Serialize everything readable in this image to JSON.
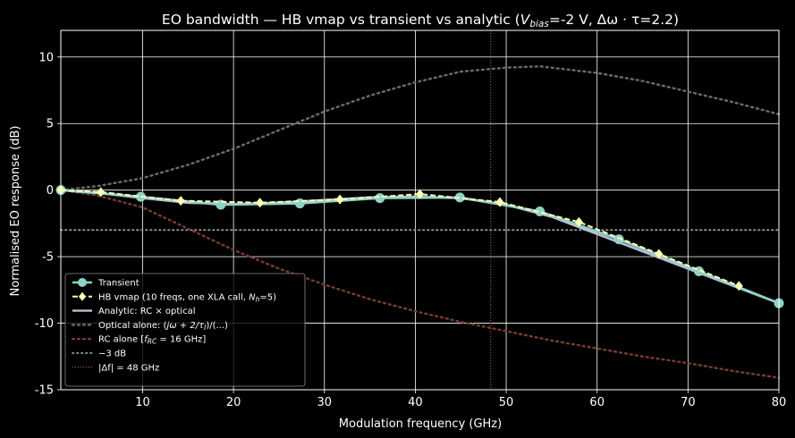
{
  "chart_data": {
    "type": "line",
    "title": "EO bandwidth — HB vmap vs transient vs analytic  (V_bias=-2 V, Δω · τ=2.2)",
    "title_parts": {
      "prefix": "EO bandwidth — HB vmap vs transient vs analytic  (",
      "v": "V",
      "v_sub": "bias",
      "mid": "=-2 V, Δω · τ=2.2)"
    },
    "xlabel": "Modulation frequency (GHz)",
    "ylabel": "Normalised EO response (dB)",
    "xlim": [
      1,
      80
    ],
    "ylim": [
      -15,
      12
    ],
    "xticks": [
      10,
      20,
      30,
      40,
      50,
      60,
      70,
      80
    ],
    "yticks": [
      -15,
      -10,
      -5,
      0,
      5,
      10
    ],
    "grid": true,
    "legend_position": "lower-left",
    "colors": {
      "background": "#000000",
      "grid": "#ffffff",
      "transient": "#8dd3c7",
      "hb": "#ffffb3",
      "analytic": "#bfbbd9",
      "optical": "#6b6b6b",
      "rc": "#7a3b33",
      "minus3db": "#9a9a9a",
      "df": "#c46a34"
    },
    "series": [
      {
        "name": "Transient",
        "legend": "Transient",
        "style": "line-circle",
        "color": "#8dd3c7",
        "x": [
          1,
          9.8,
          18.6,
          27.3,
          36.1,
          44.9,
          53.7,
          62.4,
          71.2,
          80
        ],
        "y": [
          0,
          -0.5,
          -1.1,
          -1.0,
          -0.6,
          -0.55,
          -1.6,
          -3.7,
          -6.1,
          -8.5
        ]
      },
      {
        "name": "HB vmap",
        "legend_prefix": "HB vmap (10 freqs, one XLA call, ",
        "legend_n": "N",
        "legend_sub": "h",
        "legend_suffix": "=5)",
        "style": "dashed-diamond",
        "color": "#ffffb3",
        "x": [
          1,
          5.4,
          14.2,
          22.9,
          31.7,
          40.5,
          49.3,
          58.0,
          66.8,
          75.6
        ],
        "y": [
          0,
          -0.15,
          -0.8,
          -0.95,
          -0.7,
          -0.3,
          -0.9,
          -2.4,
          -4.8,
          -7.2
        ]
      },
      {
        "name": "Analytic",
        "legend": "Analytic: RC × optical",
        "style": "solid",
        "color": "#bfbbd9",
        "x": [
          1,
          5,
          10,
          15,
          20,
          25,
          30,
          35,
          40,
          45,
          50,
          55,
          60,
          65,
          70,
          75,
          80
        ],
        "y": [
          0,
          -0.2,
          -0.6,
          -0.95,
          -1.05,
          -0.95,
          -0.75,
          -0.55,
          -0.5,
          -0.6,
          -1.1,
          -2.0,
          -3.3,
          -4.6,
          -5.9,
          -7.2,
          -8.5
        ]
      },
      {
        "name": "Optical alone",
        "legend_prefix": "Optical alone: (",
        "legend_math": "jω + 2/τ",
        "legend_sub": "I",
        "legend_suffix": ")/(...)",
        "style": "dotted",
        "color": "#6b6b6b",
        "x": [
          1,
          5,
          10,
          15,
          20,
          25,
          30,
          35,
          40,
          45,
          50,
          53.7,
          60,
          65,
          70,
          75,
          80
        ],
        "y": [
          0,
          0.3,
          0.9,
          1.9,
          3.1,
          4.5,
          5.9,
          7.1,
          8.1,
          8.9,
          9.2,
          9.3,
          8.8,
          8.2,
          7.4,
          6.6,
          5.7
        ]
      },
      {
        "name": "RC alone",
        "legend_prefix": "RC alone  [",
        "legend_f": "f",
        "legend_sub": "RC",
        "legend_suffix": " = 16 GHz]",
        "style": "dotted",
        "color": "#7a3b33",
        "x": [
          1,
          5,
          10,
          15,
          20,
          25,
          30,
          35,
          40,
          45,
          50,
          55,
          60,
          65,
          70,
          75,
          80
        ],
        "y": [
          0,
          -0.4,
          -1.3,
          -2.9,
          -4.5,
          -5.9,
          -7.1,
          -8.2,
          -9.1,
          -9.9,
          -10.6,
          -11.3,
          -11.9,
          -12.5,
          -13.0,
          -13.6,
          -14.1
        ]
      }
    ],
    "reference_lines": [
      {
        "name": "-3 dB",
        "legend": "−3 dB",
        "orientation": "horizontal",
        "value": -3,
        "color": "#9a9a9a"
      },
      {
        "name": "|Δf| = 48 GHz",
        "legend": "|Δf| = 48 GHz",
        "orientation": "vertical",
        "value": 48.3,
        "color": "#c46a34"
      }
    ]
  }
}
